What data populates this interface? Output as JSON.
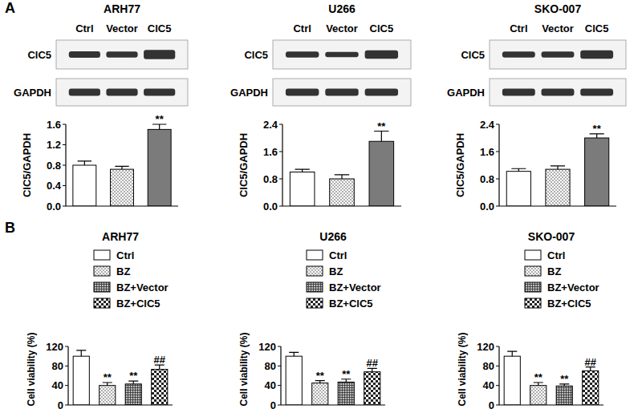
{
  "panel_labels": [
    "A",
    "B"
  ],
  "chart_data": [
    {
      "type": "bar",
      "title": "ARH77",
      "ylabel": "ClC5/GAPDH",
      "categories": [
        "Ctrl",
        "Vector",
        "ClC5"
      ],
      "blot_rows": [
        "ClC5",
        "GAPDH"
      ],
      "values": [
        0.8,
        0.72,
        1.5
      ],
      "errors": [
        0.08,
        0.06,
        0.1
      ],
      "significance": [
        null,
        null,
        "**"
      ],
      "ylim": [
        0,
        1.6
      ],
      "yticks": [
        {
          "value": 0,
          "label": "0.0"
        },
        0.4,
        0.8,
        1.2,
        1.6
      ],
      "tick_labels": "y",
      "grid": false
    },
    {
      "type": "bar",
      "title": "U266",
      "ylabel": "ClC5/GAPDH",
      "categories": [
        "Ctrl",
        "Vector",
        "ClC5"
      ],
      "blot_rows": [
        "ClC5",
        "GAPDH"
      ],
      "values": [
        1.0,
        0.8,
        1.9
      ],
      "errors": [
        0.08,
        0.12,
        0.3
      ],
      "significance": [
        null,
        null,
        "**"
      ],
      "ylim": [
        0,
        2.4
      ],
      "yticks": [
        {
          "value": 0,
          "label": "0.0"
        },
        0.8,
        1.6,
        2.4
      ],
      "tick_labels": "y",
      "grid": false
    },
    {
      "type": "bar",
      "title": "SKO-007",
      "ylabel": "ClC5/GAPDH",
      "categories": [
        "Ctrl",
        "Vector",
        "ClC5"
      ],
      "blot_rows": [
        "ClC5",
        "GAPDH"
      ],
      "values": [
        1.02,
        1.08,
        2.0
      ],
      "errors": [
        0.08,
        0.1,
        0.12
      ],
      "significance": [
        null,
        null,
        "**"
      ],
      "ylim": [
        0,
        2.4
      ],
      "yticks": [
        {
          "value": 0,
          "label": "0.0"
        },
        0.8,
        1.6,
        2.4
      ],
      "tick_labels": "y",
      "grid": false
    },
    {
      "type": "bar",
      "title": "ARH77",
      "ylabel": "Cell viability (%)",
      "categories": [
        "Ctrl",
        "BZ",
        "BZ+Vector",
        "BZ+ClC5"
      ],
      "values": [
        100,
        40,
        43,
        73
      ],
      "errors": [
        12,
        6,
        6,
        9
      ],
      "significance": [
        null,
        "**",
        "**",
        "##"
      ],
      "ylim": [
        0,
        120
      ],
      "yticks": [
        0,
        40,
        80,
        120
      ],
      "legend": "top",
      "tick_labels": "y",
      "grid": false
    },
    {
      "type": "bar",
      "title": "U266",
      "ylabel": "Cell viability (%)",
      "categories": [
        "Ctrl",
        "BZ",
        "BZ+Vector",
        "BZ+ClC5"
      ],
      "values": [
        100,
        45,
        47,
        68
      ],
      "errors": [
        8,
        5,
        6,
        7
      ],
      "significance": [
        null,
        "**",
        "**",
        "##"
      ],
      "ylim": [
        0,
        120
      ],
      "yticks": [
        0,
        40,
        80,
        120
      ],
      "legend": "top",
      "tick_labels": "y",
      "grid": false
    },
    {
      "type": "bar",
      "title": "SKO-007",
      "ylabel": "Cell viability (%)",
      "categories": [
        "Ctrl",
        "BZ",
        "BZ+Vector",
        "BZ+ClC5"
      ],
      "values": [
        100,
        40,
        39,
        70
      ],
      "errors": [
        10,
        6,
        4,
        8
      ],
      "significance": [
        null,
        "**",
        "**",
        "##"
      ],
      "ylim": [
        0,
        120
      ],
      "yticks": [
        0,
        40,
        80,
        120
      ],
      "legend": "top",
      "tick_labels": "y",
      "grid": false
    }
  ]
}
